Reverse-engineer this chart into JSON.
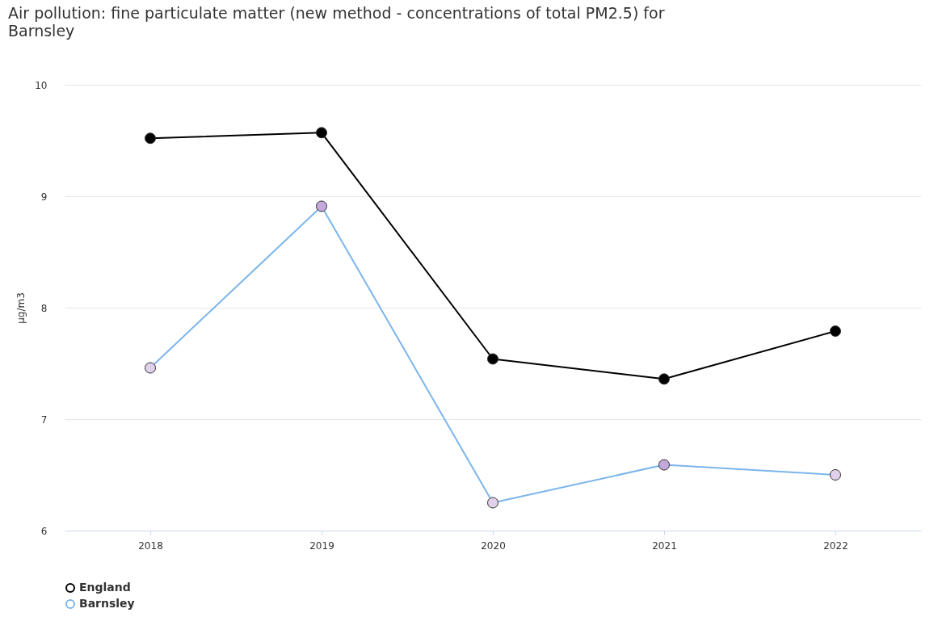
{
  "chart_data": {
    "type": "line",
    "title": "Air pollution: fine particulate matter (new method - concentrations of total PM2.5) for Barnsley",
    "ylabel": "µg/m3",
    "categories": [
      "2018",
      "2019",
      "2020",
      "2021",
      "2022"
    ],
    "series": [
      {
        "name": "England",
        "color": "#000000",
        "colors": [
          "#000000",
          "#000000",
          "#000000",
          "#000000",
          "#000000"
        ],
        "values": [
          9.52,
          9.57,
          7.54,
          7.36,
          7.79
        ]
      },
      {
        "name": "Barnsley",
        "color": "#7cb5ec",
        "colors": [
          "#e0d0ea",
          "#c4a8dc",
          "#e0d0ea",
          "#c4a8dc",
          "#e0d0ea"
        ],
        "values": [
          7.46,
          8.91,
          6.25,
          6.59,
          6.5
        ]
      }
    ],
    "ylim": [
      6,
      10
    ],
    "yticks": [
      6,
      7,
      8,
      9,
      10
    ],
    "grid": "y",
    "legend": "bottom",
    "marker": "circle",
    "line_style": "solid"
  }
}
